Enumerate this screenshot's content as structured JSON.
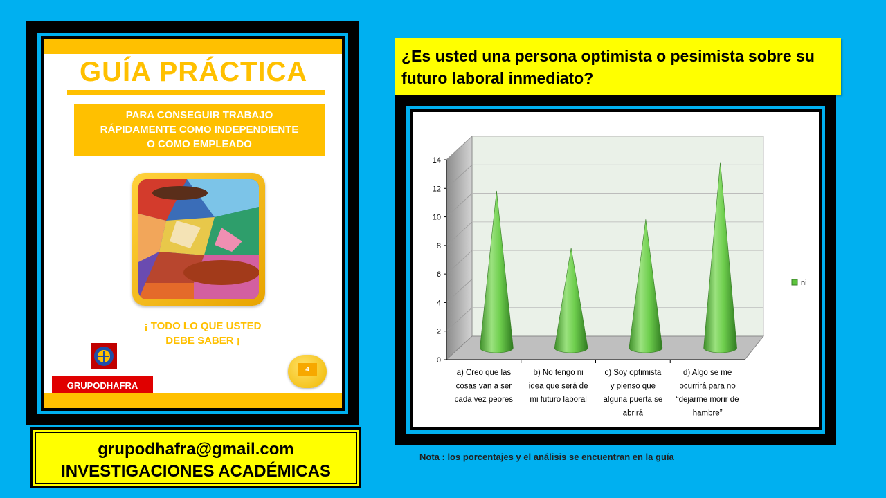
{
  "cover": {
    "title": "GUÍA PRÁCTICA",
    "subtitle": "PARA CONSEGUIR  TRABAJO\nRÁPIDAMENTE COMO INDEPENDIENTE\nO COMO EMPLEADO",
    "tagline": "¡ TODO LO QUE USTED\nDEBE SABER ¡",
    "brand": "GRUPODHAFRA",
    "page_badge": "4"
  },
  "contact": {
    "email": "grupodhafra@gmail.com",
    "org": "INVESTIGACIONES ACADÉMICAS"
  },
  "question": " ¿Es usted una persona optimista o pesimista sobre su futuro laboral inmediato?",
  "note": "Nota : los porcentajes  y el análisis se encuentran en la guía",
  "colors": {
    "background": "#00b0f0",
    "accent_yellow": "#ffff00",
    "cover_gold": "#ffc000",
    "cone_green": "#5cc43c"
  },
  "chart_data": {
    "type": "bar",
    "style": "3d-cone",
    "categories": [
      [
        "a)    Creo que las",
        "cosas van a ser",
        "cada vez peores"
      ],
      [
        "b)    No tengo ni",
        "idea que será de",
        "mi futuro laboral"
      ],
      [
        "c)    Soy optimista",
        "y pienso que",
        "alguna puerta se",
        "abrirá"
      ],
      [
        "d)    Algo se me",
        "ocurrirá para no",
        "“dejarme morir de",
        "hambre”"
      ]
    ],
    "series": [
      {
        "name": "ni",
        "values": [
          11,
          7,
          9,
          13
        ]
      }
    ],
    "yticks": [
      "0",
      "2",
      "4",
      "6",
      "8",
      "10",
      "12",
      "14"
    ],
    "ylim": [
      0,
      14
    ],
    "grid": true,
    "legend": "right"
  }
}
